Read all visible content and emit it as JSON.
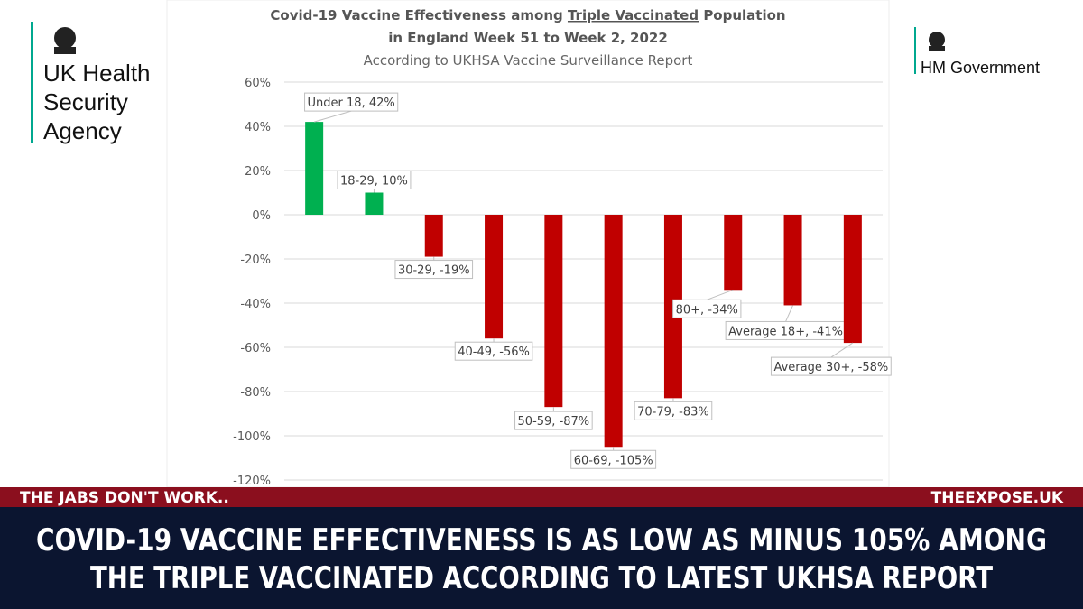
{
  "header": {
    "agency": [
      "UK Health",
      "Security",
      "Agency"
    ],
    "government": "HM Government"
  },
  "chart_data": {
    "type": "bar",
    "title": {
      "before": "Covid-19 Vaccine Effectiveness among ",
      "underlined": "Triple Vaccinated",
      "after": " Population",
      "line2": "in England Week 51 to Week 2, 2022"
    },
    "subtitle": "According to UKHSA Vaccine Surveillance Report",
    "categories": [
      "Under 18",
      "18-29",
      "30-29",
      "40-49",
      "50-59",
      "60-69",
      "70-79",
      "80+",
      "Average 18+",
      "Average 30+"
    ],
    "values": [
      42,
      10,
      -19,
      -56,
      -87,
      -105,
      -83,
      -34,
      -41,
      -58
    ],
    "value_labels": [
      "Under 18, 42%",
      "18-29, 10%",
      "30-29, -19%",
      "40-49, -56%",
      "50-59, -87%",
      "60-69, -105%",
      "70-79, -83%",
      "80+, -34%",
      "Average 18+, -41%",
      "Average 30+, -58%"
    ],
    "colors": [
      "#00b050",
      "#00b050",
      "#c00000",
      "#c00000",
      "#c00000",
      "#c00000",
      "#c00000",
      "#c00000",
      "#c00000",
      "#c00000"
    ],
    "ylim": [
      -120,
      60
    ],
    "yticks": [
      {
        "value": 60,
        "label": "60%"
      },
      {
        "value": 40,
        "label": "40%"
      },
      {
        "value": 20,
        "label": "20%"
      },
      {
        "value": 0,
        "label": "0%"
      },
      {
        "value": -20,
        "label": "-20%"
      },
      {
        "value": -40,
        "label": "-40%"
      },
      {
        "value": -60,
        "label": "-60%"
      },
      {
        "value": -80,
        "label": "-80%"
      },
      {
        "value": -100,
        "label": "-100%"
      },
      {
        "value": -120,
        "label": "-120%"
      }
    ],
    "grid": true
  },
  "banner": {
    "left": "THE JABS DON'T WORK..",
    "right": "THEEXPOSE.UK",
    "headline": [
      "COVID-19 VACCINE EFFECTIVENESS IS AS LOW AS MINUS 105% AMONG",
      "THE TRIPLE VACCINATED ACCORDING TO LATEST UKHSA REPORT"
    ]
  }
}
